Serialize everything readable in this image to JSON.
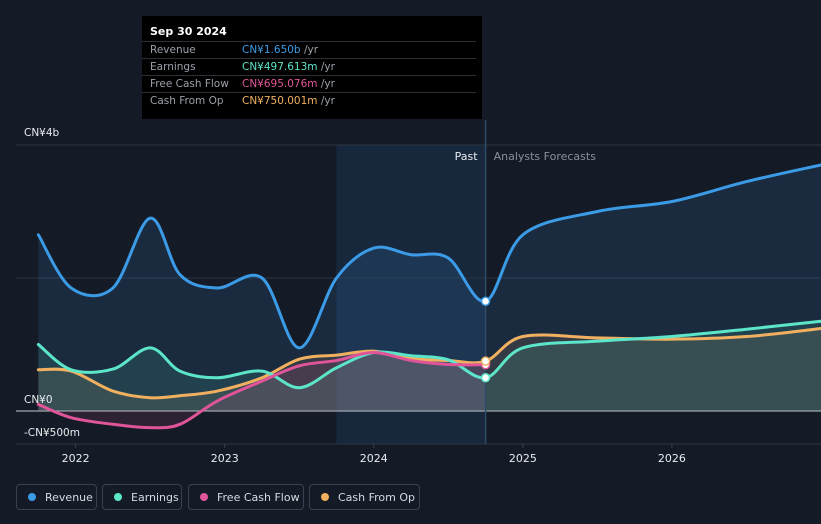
{
  "tooltip": {
    "date": "Sep 30 2024",
    "rows": [
      {
        "label": "Revenue",
        "value": "CN¥1.650b",
        "unit": "/yr",
        "color": "#3b9be6"
      },
      {
        "label": "Earnings",
        "value": "CN¥497.613m",
        "unit": "/yr",
        "color": "#5ce5c8"
      },
      {
        "label": "Free Cash Flow",
        "value": "CN¥695.076m",
        "unit": "/yr",
        "color": "#e0559a"
      },
      {
        "label": "Cash From Op",
        "value": "CN¥750.001m",
        "unit": "/yr",
        "color": "#f0b060"
      }
    ]
  },
  "legend": [
    {
      "label": "Revenue",
      "color": "#3b9be6"
    },
    {
      "label": "Earnings",
      "color": "#5ce5c8"
    },
    {
      "label": "Free Cash Flow",
      "color": "#e0559a"
    },
    {
      "label": "Cash From Op",
      "color": "#f0b060"
    }
  ],
  "chart_data": {
    "type": "line",
    "title": "",
    "xlabel": "",
    "ylabel": "",
    "x_ticks": [
      {
        "label": "2022",
        "t": 2022.0
      },
      {
        "label": "2023",
        "t": 2023.0
      },
      {
        "label": "2024",
        "t": 2024.0
      },
      {
        "label": "2025",
        "t": 2025.0
      },
      {
        "label": "2026",
        "t": 2026.0
      }
    ],
    "y_ticks": [
      {
        "label": "CN¥4b",
        "v": 4000
      },
      {
        "label": "CN¥0",
        "v": 0
      },
      {
        "label": "-CN¥500m",
        "v": -500
      }
    ],
    "xlim": [
      2021.6,
      2027.0
    ],
    "ylim": [
      -500,
      4000
    ],
    "divider_t": 2024.75,
    "highlight_range": [
      2023.75,
      2024.75
    ],
    "past_label": "Past",
    "forecast_label": "Analysts Forecasts",
    "series": [
      {
        "name": "Revenue",
        "color": "#3b9be6",
        "points": [
          [
            2021.75,
            2650
          ],
          [
            2021.97,
            1850
          ],
          [
            2022.25,
            1850
          ],
          [
            2022.5,
            2900
          ],
          [
            2022.7,
            2050
          ],
          [
            2022.95,
            1850
          ],
          [
            2023.25,
            2000
          ],
          [
            2023.5,
            950
          ],
          [
            2023.75,
            2000
          ],
          [
            2024.0,
            2450
          ],
          [
            2024.25,
            2350
          ],
          [
            2024.5,
            2300
          ],
          [
            2024.75,
            1650
          ],
          [
            2025.0,
            2650
          ],
          [
            2025.5,
            3000
          ],
          [
            2026.0,
            3150
          ],
          [
            2026.5,
            3450
          ],
          [
            2027.0,
            3700
          ]
        ]
      },
      {
        "name": "Earnings",
        "color": "#5ce5c8",
        "points": [
          [
            2021.75,
            1000
          ],
          [
            2021.97,
            620
          ],
          [
            2022.25,
            630
          ],
          [
            2022.5,
            950
          ],
          [
            2022.7,
            600
          ],
          [
            2022.95,
            500
          ],
          [
            2023.25,
            600
          ],
          [
            2023.5,
            350
          ],
          [
            2023.75,
            650
          ],
          [
            2024.0,
            880
          ],
          [
            2024.25,
            830
          ],
          [
            2024.5,
            770
          ],
          [
            2024.75,
            500
          ],
          [
            2025.0,
            950
          ],
          [
            2025.5,
            1050
          ],
          [
            2026.0,
            1120
          ],
          [
            2026.5,
            1230
          ],
          [
            2027.0,
            1350
          ]
        ]
      },
      {
        "name": "Free Cash Flow",
        "color": "#e0559a",
        "points": [
          [
            2021.75,
            100
          ],
          [
            2021.97,
            -100
          ],
          [
            2022.25,
            -200
          ],
          [
            2022.5,
            -250
          ],
          [
            2022.7,
            -200
          ],
          [
            2022.95,
            150
          ],
          [
            2023.25,
            450
          ],
          [
            2023.5,
            680
          ],
          [
            2023.75,
            760
          ],
          [
            2024.0,
            880
          ],
          [
            2024.25,
            760
          ],
          [
            2024.5,
            700
          ],
          [
            2024.75,
            695
          ]
        ]
      },
      {
        "name": "Cash From Op",
        "color": "#f0b060",
        "points": [
          [
            2021.75,
            620
          ],
          [
            2021.97,
            600
          ],
          [
            2022.25,
            300
          ],
          [
            2022.5,
            200
          ],
          [
            2022.7,
            230
          ],
          [
            2022.95,
            300
          ],
          [
            2023.25,
            500
          ],
          [
            2023.5,
            780
          ],
          [
            2023.75,
            840
          ],
          [
            2024.0,
            900
          ],
          [
            2024.25,
            790
          ],
          [
            2024.5,
            760
          ],
          [
            2024.75,
            750
          ],
          [
            2025.0,
            1120
          ],
          [
            2025.5,
            1100
          ],
          [
            2026.0,
            1080
          ],
          [
            2026.5,
            1120
          ],
          [
            2027.0,
            1240
          ]
        ]
      }
    ]
  }
}
